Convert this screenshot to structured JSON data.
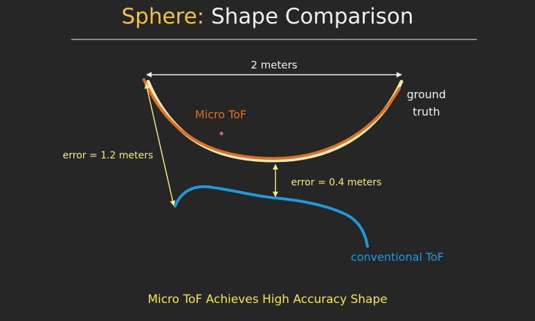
{
  "title": {
    "accent": "Sphere:",
    "rest": "Shape Comparison"
  },
  "diagram": {
    "width_label": "2 meters",
    "ground_truth_label_line1": "ground",
    "ground_truth_label_line2": "truth",
    "micro_tof_label": "Micro ToF",
    "conventional_tof_label": "conventional ToF",
    "error_left_label": "error = 1.2 meters",
    "error_center_label": "error = 0.4 meters"
  },
  "footer": "Micro ToF Achieves High Accuracy Shape",
  "colors": {
    "background": "#262626",
    "title_accent": "#f3c23c",
    "title_text": "#f0f0f0",
    "ground_truth": "#f3e9b8",
    "micro_tof": "#e0701f",
    "conventional_tof": "#1e9be0",
    "error_lines": "#f5ec7a",
    "footer": "#f5e83c"
  }
}
